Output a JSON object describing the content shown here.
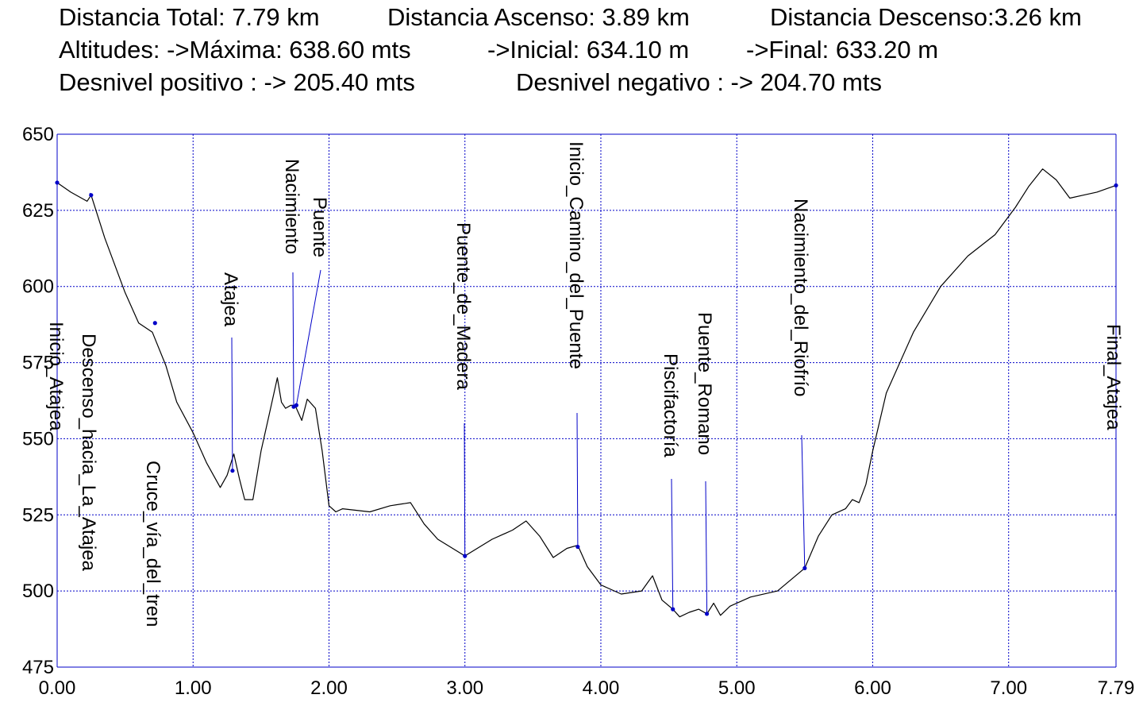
{
  "header": {
    "line1": {
      "total": "Distancia Total: 7.79 km",
      "ascent": "Distancia Ascenso: 3.89 km",
      "descent": "Distancia Descenso:3.26 km"
    },
    "line2": {
      "max": "Altitudes: ->Máxima: 638.60 mts",
      "initial": "->Inicial: 634.10 m",
      "final": "->Final: 633.20 m"
    },
    "line3": {
      "positive": "Desnivel positivo : -> 205.40 mts",
      "negative": "Desnivel negativo : -> 204.70 mts"
    }
  },
  "colors": {
    "line": "#000000",
    "grid": "#0000c8",
    "marker": "#0000c8"
  },
  "chart_data": {
    "type": "line",
    "title": "",
    "xlabel": "",
    "ylabel": "",
    "xlim": [
      0,
      7.79
    ],
    "ylim": [
      475,
      650
    ],
    "grid": true,
    "x_ticks": [
      0,
      1,
      2,
      3,
      4,
      5,
      6,
      7,
      7.79
    ],
    "x_tick_labels": [
      "0.00",
      "1.00",
      "2.00",
      "3.00",
      "4.00",
      "5.00",
      "6.00",
      "7.00",
      "7.79"
    ],
    "y_ticks": [
      475,
      500,
      525,
      550,
      575,
      600,
      625,
      650
    ],
    "y_tick_labels": [
      "475",
      "500",
      "525",
      "550",
      "575",
      "600",
      "625",
      "650"
    ],
    "series": [
      {
        "x": [
          0,
          0.1,
          0.22,
          0.25,
          0.35,
          0.5,
          0.6,
          0.7,
          0.8,
          0.88,
          1.0,
          1.1,
          1.2,
          1.25,
          1.3,
          1.34,
          1.38,
          1.44,
          1.5,
          1.57,
          1.62,
          1.65,
          1.68,
          1.72,
          1.75,
          1.8,
          1.84,
          1.9,
          1.95,
          2.0,
          2.05,
          2.1,
          2.3,
          2.45,
          2.6,
          2.7,
          2.8,
          3.0,
          3.2,
          3.35,
          3.45,
          3.55,
          3.65,
          3.75,
          3.83,
          3.9,
          4.0,
          4.15,
          4.3,
          4.38,
          4.45,
          4.53,
          4.58,
          4.65,
          4.72,
          4.78,
          4.83,
          4.88,
          4.95,
          5.1,
          5.3,
          5.5,
          5.6,
          5.7,
          5.8,
          5.85,
          5.9,
          5.95,
          6.0,
          6.1,
          6.3,
          6.5,
          6.7,
          6.9,
          7.05,
          7.15,
          7.25,
          7.35,
          7.45,
          7.55,
          7.65,
          7.79
        ],
        "y": [
          634.1,
          631,
          628,
          630,
          616,
          598,
          588,
          585,
          574,
          562,
          552,
          542,
          534,
          538,
          545,
          537,
          530,
          530,
          546,
          560,
          570,
          562,
          560,
          561,
          561,
          556,
          563,
          560,
          546,
          528,
          526,
          527,
          526,
          528,
          529,
          522,
          517,
          511.5,
          517,
          520,
          523,
          518,
          511,
          514,
          515,
          508,
          502,
          499,
          500,
          505,
          497,
          494,
          491.5,
          493,
          494,
          492.5,
          496,
          492,
          495,
          498,
          500,
          507.5,
          518,
          525,
          527,
          530,
          529,
          535,
          546,
          565,
          585,
          600,
          610,
          617,
          626,
          633,
          638.6,
          635,
          629,
          630,
          631,
          633.2
        ]
      }
    ],
    "waypoints": [
      {
        "name": "Inicio_Atajea",
        "x": 0,
        "y": 634.1
      },
      {
        "name": "Descenso_hacia_La_Atajea",
        "x": 0.25,
        "y": 630
      },
      {
        "name": "Cruce_vía_del_tren",
        "x": 0.72,
        "y": 588
      },
      {
        "name": "Atajea",
        "x": 1.29,
        "y": 539.5
      },
      {
        "name": "Nacimiento",
        "x": 1.74,
        "y": 560.5
      },
      {
        "name": "Puente",
        "x": 1.76,
        "y": 561
      },
      {
        "name": "Puente_de_Madera",
        "x": 3.0,
        "y": 511.5
      },
      {
        "name": "Inicio_Camino_del_Puente",
        "x": 3.83,
        "y": 514.5
      },
      {
        "name": "Piscifactoría",
        "x": 4.53,
        "y": 494
      },
      {
        "name": "Puente_Romano",
        "x": 4.78,
        "y": 492.5
      },
      {
        "name": "Nacimiento_del_Riofrío",
        "x": 5.5,
        "y": 507.5
      },
      {
        "name": "Final_Atajea",
        "x": 7.79,
        "y": 633.2
      }
    ]
  }
}
